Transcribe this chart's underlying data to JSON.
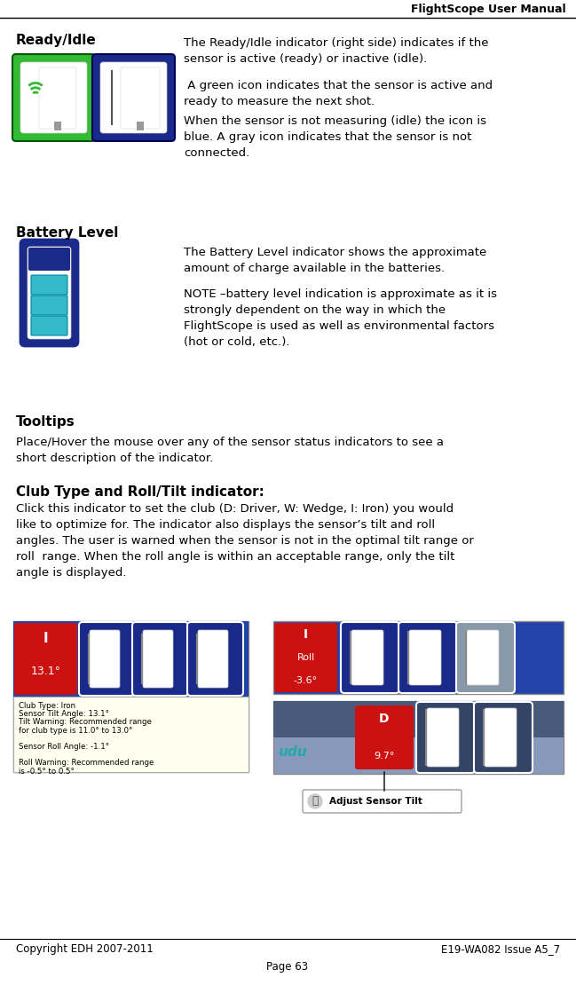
{
  "header_title": "FlightScope User Manual",
  "footer_copyright": "Copyright EDH 2007-2011",
  "footer_issue": "E19-WA082 Issue A5_7",
  "footer_page": "Page 63",
  "ready_idle_title": "Ready/Idle",
  "ready_idle_text1": "The Ready/Idle indicator (right side) indicates if the\nsensor is active (ready) or inactive (idle).",
  "ready_idle_text2": " A green icon indicates that the sensor is active and\nready to measure the next shot.",
  "ready_idle_text3": "When the sensor is not measuring (idle) the icon is\nblue. A gray icon indicates that the sensor is not\nconnected.",
  "battery_title": "Battery Level",
  "battery_text1": "The Battery Level indicator shows the approximate\namount of charge available in the batteries.",
  "battery_text2": "NOTE –battery level indication is approximate as it is\nstrongly dependent on the way in which the\nFlightScope is used as well as environmental factors\n(hot or cold, etc.).",
  "tooltips_title": "Tooltips",
  "tooltips_text": "Place/Hover the mouse over any of the sensor status indicators to see a\nshort description of the indicator.",
  "club_title": "Club Type and Roll/Tilt indicator:",
  "club_text": "Click this indicator to set the club (D: Driver, W: Wedge, I: Iron) you would\nlike to optimize for. The indicator also displays the sensor’s tilt and roll\nangles. The user is warned when the sensor is not in the optimal tilt range or\nroll  range. When the roll angle is within an acceptable range, only the tilt\nangle is displayed.",
  "bg_color": "#ffffff",
  "text_color": "#000000",
  "green_icon_bg": "#33bb33",
  "blue_icon_bg": "#1a2a8a",
  "battery_border_color": "#1a2a8a",
  "battery_fill_color": "#33bbcc",
  "battery_bg": "#1a2a8a",
  "red_icon_bg": "#cc1111",
  "tilt_icon_bg": "#cc1111",
  "icon_strip_bg": "#2244aa",
  "tooltip_bg": "#fffff0",
  "tooltip_border": "#aaaaaa",
  "bottom_img_bg": "#8899bb",
  "bottom_img2_bg": "#8899bb"
}
